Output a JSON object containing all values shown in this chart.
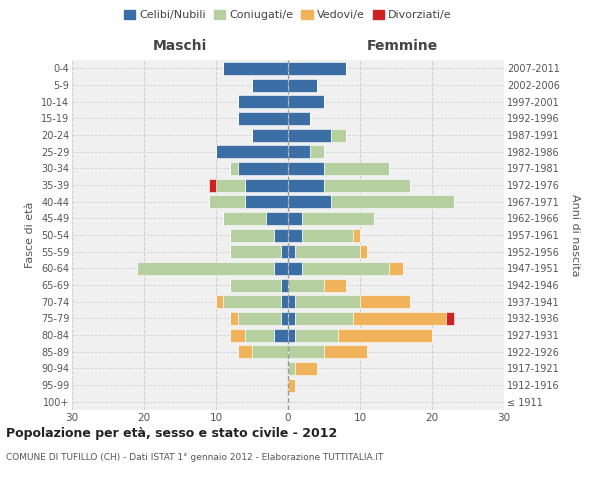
{
  "age_groups": [
    "100+",
    "95-99",
    "90-94",
    "85-89",
    "80-84",
    "75-79",
    "70-74",
    "65-69",
    "60-64",
    "55-59",
    "50-54",
    "45-49",
    "40-44",
    "35-39",
    "30-34",
    "25-29",
    "20-24",
    "15-19",
    "10-14",
    "5-9",
    "0-4"
  ],
  "birth_years": [
    "≤ 1911",
    "1912-1916",
    "1917-1921",
    "1922-1926",
    "1927-1931",
    "1932-1936",
    "1937-1941",
    "1942-1946",
    "1947-1951",
    "1952-1956",
    "1957-1961",
    "1962-1966",
    "1967-1971",
    "1972-1976",
    "1977-1981",
    "1982-1986",
    "1987-1991",
    "1992-1996",
    "1997-2001",
    "2002-2006",
    "2007-2011"
  ],
  "maschi": {
    "celibi": [
      0,
      0,
      0,
      0,
      2,
      1,
      1,
      1,
      2,
      1,
      2,
      3,
      6,
      6,
      7,
      10,
      5,
      7,
      7,
      5,
      9
    ],
    "coniugati": [
      0,
      0,
      0,
      5,
      4,
      6,
      8,
      7,
      19,
      7,
      6,
      6,
      5,
      4,
      1,
      0,
      0,
      0,
      0,
      0,
      0
    ],
    "vedovi": [
      0,
      0,
      0,
      2,
      2,
      1,
      1,
      0,
      0,
      0,
      0,
      0,
      0,
      0,
      0,
      0,
      0,
      0,
      0,
      0,
      0
    ],
    "divorziati": [
      0,
      0,
      0,
      0,
      0,
      0,
      0,
      0,
      0,
      0,
      0,
      0,
      0,
      1,
      0,
      0,
      0,
      0,
      0,
      0,
      0
    ]
  },
  "femmine": {
    "nubili": [
      0,
      0,
      0,
      0,
      1,
      1,
      1,
      0,
      2,
      1,
      2,
      2,
      6,
      5,
      5,
      3,
      6,
      3,
      5,
      4,
      8
    ],
    "coniugate": [
      0,
      0,
      1,
      5,
      6,
      8,
      9,
      5,
      12,
      9,
      7,
      10,
      17,
      12,
      9,
      2,
      2,
      0,
      0,
      0,
      0
    ],
    "vedove": [
      0,
      1,
      3,
      6,
      13,
      13,
      7,
      3,
      2,
      1,
      1,
      0,
      0,
      0,
      0,
      0,
      0,
      0,
      0,
      0,
      0
    ],
    "divorziate": [
      0,
      0,
      0,
      0,
      0,
      1,
      0,
      0,
      0,
      0,
      0,
      0,
      0,
      0,
      0,
      0,
      0,
      0,
      0,
      0,
      0
    ]
  },
  "colors": {
    "celibi": "#3b6ea5",
    "coniugati": "#b5cfa0",
    "vedovi": "#f0b35b",
    "divorziati": "#cc2222"
  },
  "title": "Popolazione per età, sesso e stato civile - 2012",
  "subtitle": "COMUNE DI TUFILLO (CH) - Dati ISTAT 1° gennaio 2012 - Elaborazione TUTTITALIA.IT",
  "xlabel_left": "Maschi",
  "xlabel_right": "Femmine",
  "ylabel_left": "Fasce di età",
  "ylabel_right": "Anni di nascita",
  "xlim": 30,
  "bg_color": "#f0f0f0",
  "grid_color": "#cccccc"
}
